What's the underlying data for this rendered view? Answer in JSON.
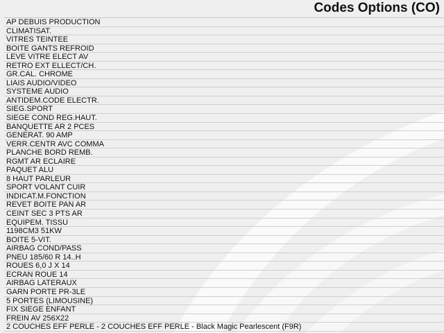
{
  "header": {
    "title": "Codes Options (CO)"
  },
  "options": [
    "AP DEBUIS PRODUCTION",
    "CLIMATISAT.",
    "VITRES TEINTEE",
    "BOITE GANTS REFROID",
    "LEVE VITRE ELECT AV",
    "RETRO EXT ELLECT/CH.",
    "GR.CAL. CHROME",
    "LIAIS AUDIO/VIDEO",
    "SYSTEME AUDIO",
    "ANTIDEM.CODE ELECTR.",
    "SIEG.SPORT",
    "SIEGE COND REG.HAUT.",
    "BANQUETTE AR 2 PCES",
    "GENERAT. 90 AMP",
    "VERR.CENTR AVC COMMA",
    "PLANCHE BORD REMB.",
    "RGMT AR ECLAIRE",
    "PAQUET ALU",
    "8 HAUT PARLEUR",
    "SPORT VOLANT CUIR",
    "INDICAT.M.FONCTION",
    "REVET BOITE PAN AR",
    "CEINT SEC 3 PTS AR",
    "EQUIPEM. TISSU",
    "1198CM3 51KW",
    "BOITE 5-VIT.",
    "AIRBAG COND/PASS",
    "PNEU 185/60 R 14..H",
    "ROUES 6,0 J X 14",
    "ECRAN ROUE 14",
    "AIRBAG LATERAUX",
    "GARN PORTE PR-3LE",
    "5 PORTES (LIMOUSINE)",
    "FIX SIEGE ENFANT",
    "FREIN AV 256X22",
    "2 COUCHES EFF PERLE - 2 COUCHES EFF PERLE - Black Magic Pearlescent (F9R)"
  ]
}
